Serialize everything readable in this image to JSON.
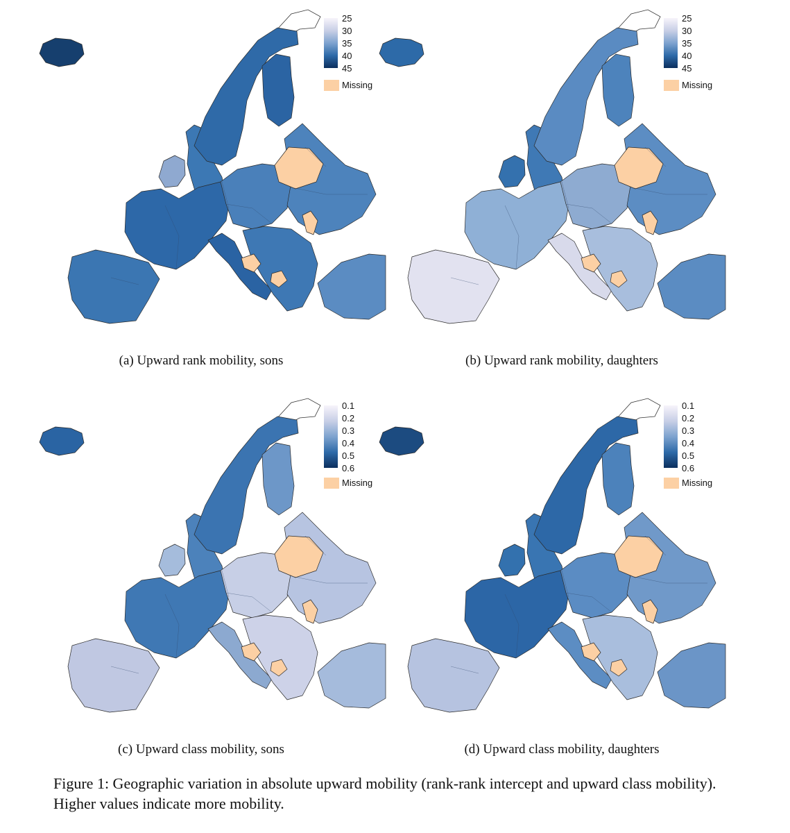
{
  "panels": [
    {
      "id": "a",
      "caption": "(a) Upward rank mobility, sons",
      "legend": {
        "ticks": [
          "25",
          "30",
          "35",
          "40",
          "45"
        ],
        "missing": "Missing"
      },
      "shades": {
        "west": "#2d68a8",
        "iberia": "#3b76b2",
        "italy": "#2a63a3",
        "uk": "#3c78b4",
        "ireland": "#8fa9d0",
        "nordic": "#2f6aa8",
        "finland": "#2b64a3",
        "central": "#4a80ba",
        "east": "#4d83bc",
        "balkans": "#3e78b4",
        "turkey": "#5b8cc2",
        "iceland": "#163f6e"
      }
    },
    {
      "id": "b",
      "caption": "(b) Upward rank mobility, daughters",
      "legend": {
        "ticks": [
          "25",
          "30",
          "35",
          "40",
          "45"
        ],
        "missing": "Missing"
      },
      "shades": {
        "west": "#8fb0d6",
        "iberia": "#e2e2f0",
        "italy": "#d8daeb",
        "uk": "#3f79b5",
        "ireland": "#3471ae",
        "nordic": "#5a8bc2",
        "finland": "#4d83bc",
        "central": "#8eabd1",
        "east": "#5c8dc3",
        "balkans": "#a8bedd",
        "turkey": "#5b8cc2",
        "iceland": "#2d6aa8"
      }
    },
    {
      "id": "c",
      "caption": "(c) Upward class mobility, sons",
      "legend": {
        "ticks": [
          "0.1",
          "0.2",
          "0.3",
          "0.4",
          "0.5",
          "0.6"
        ],
        "missing": "Missing"
      },
      "shades": {
        "west": "#3f78b4",
        "iberia": "#c0c8e2",
        "italy": "#8ca9d0",
        "uk": "#4c82bb",
        "ireland": "#a5bcdc",
        "nordic": "#3b74b1",
        "finland": "#6d97c8",
        "central": "#c7cfe6",
        "east": "#b7c4e1",
        "balkans": "#cdd2e8",
        "turkey": "#a5bbdc",
        "iceland": "#2a64a3"
      }
    },
    {
      "id": "d",
      "caption": "(d) Upward class mobility, daughters",
      "legend": {
        "ticks": [
          "0.1",
          "0.2",
          "0.3",
          "0.4",
          "0.5",
          "0.6"
        ],
        "missing": "Missing"
      },
      "shades": {
        "west": "#2c66a6",
        "iberia": "#b6c3e0",
        "italy": "#5c8dc3",
        "uk": "#3975b2",
        "ireland": "#3371ae",
        "nordic": "#2d68a7",
        "finland": "#4c82bb",
        "central": "#5b8cc3",
        "east": "#7099c9",
        "balkans": "#a9bedd",
        "turkey": "#6b95c7",
        "iceland": "#1c4b80"
      }
    }
  ],
  "missing_color": "#fcd0a4",
  "figure_caption": "Figure 1:  Geographic variation in absolute upward mobility (rank-rank intercept and upward class mobility).  Higher values indicate more mobility."
}
